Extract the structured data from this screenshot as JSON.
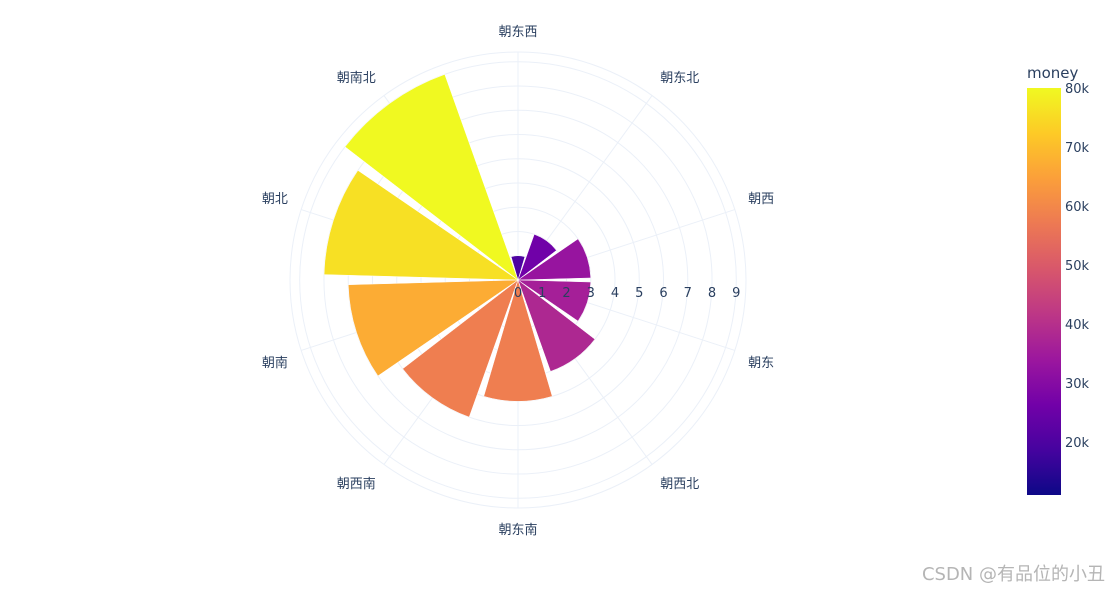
{
  "chart_data": {
    "type": "bar",
    "subtype": "polar",
    "categories": [
      "朝东",
      "朝东北",
      "朝西",
      "朝西南",
      "朝东西",
      "朝东南",
      "朝南",
      "朝南北",
      "朝北",
      "朝西北"
    ],
    "angles": [
      "朝东西",
      "朝东北",
      "朝西",
      "朝东",
      "朝西北",
      "朝东南",
      "朝西南",
      "朝南",
      "朝北",
      "朝南北"
    ],
    "bars": [
      {
        "category": "朝东西",
        "r": 1.0,
        "money": 20000
      },
      {
        "category": "朝东北",
        "r": 2.0,
        "money": 26000
      },
      {
        "category": "朝西",
        "r": 3.0,
        "money": 33000
      },
      {
        "category": "朝东",
        "r": 3.0,
        "money": 36000
      },
      {
        "category": "朝西北",
        "r": 4.0,
        "money": 38000
      },
      {
        "category": "朝东南",
        "r": 5.0,
        "money": 58000
      },
      {
        "category": "朝西南",
        "r": 6.0,
        "money": 58000
      },
      {
        "category": "朝南",
        "r": 7.0,
        "money": 67000
      },
      {
        "category": "朝北",
        "r": 8.0,
        "money": 76000
      },
      {
        "category": "朝南北",
        "r": 9.0,
        "money": 80000
      }
    ],
    "radial_range": [
      0,
      9.4
    ],
    "radial_ticks": [
      0,
      1,
      2,
      3,
      4,
      5,
      6,
      7,
      8,
      9
    ],
    "grid": true,
    "colorbar": {
      "title": "money",
      "range": [
        11000,
        80000
      ],
      "ticks": [
        20000,
        30000,
        40000,
        50000,
        60000,
        70000,
        80000
      ],
      "tick_labels": [
        "20k",
        "30k",
        "40k",
        "50k",
        "60k",
        "70k",
        "80k"
      ],
      "colorscale": [
        "#0d0887",
        "#46039f",
        "#7201a8",
        "#9c179e",
        "#bd3786",
        "#d8576b",
        "#ed7953",
        "#fb9f3a",
        "#fdca26",
        "#f0f921"
      ]
    }
  },
  "watermark": "CSDN @有品位的小丑"
}
